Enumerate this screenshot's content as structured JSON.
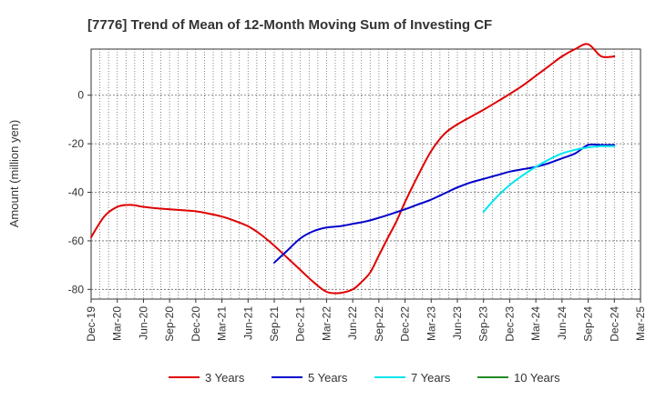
{
  "chart_data": {
    "type": "line",
    "title": "[7776]  Trend of Mean of 12-Month Moving Sum of Investing CF",
    "xlabel": "",
    "ylabel": "Amount (million yen)",
    "ylim": [
      -84,
      19
    ],
    "yticks": [
      0,
      -20,
      -40,
      -60,
      -80
    ],
    "x_tick_labels": [
      "Dec-19",
      "Mar-20",
      "Jun-20",
      "Sep-20",
      "Dec-20",
      "Mar-21",
      "Jun-21",
      "Sep-21",
      "Dec-21",
      "Mar-22",
      "Jun-22",
      "Sep-22",
      "Dec-22",
      "Mar-23",
      "Jun-23",
      "Sep-23",
      "Dec-23",
      "Mar-24",
      "Jun-24",
      "Sep-24",
      "Dec-24",
      "Mar-25"
    ],
    "grid": true,
    "legend_position": "bottom",
    "series": [
      {
        "name": "3 Years",
        "color": "#e00000",
        "x": [
          0,
          0.5,
          1,
          1.5,
          2,
          2.5,
          3,
          3.5,
          4,
          4.5,
          5,
          5.5,
          6,
          6.5,
          7,
          7.5,
          8,
          8.5,
          9,
          9.5,
          10,
          10.33,
          10.67,
          11,
          11.33,
          11.67,
          12,
          12.5,
          13,
          13.5,
          14,
          14.5,
          15,
          15.5,
          16,
          16.5,
          17,
          17.5,
          18,
          18.5,
          19,
          19.5,
          20
        ],
        "values": [
          -58.5,
          -50,
          -46,
          -45.2,
          -46,
          -46.6,
          -47,
          -47.4,
          -47.8,
          -48.8,
          -50,
          -51.8,
          -54,
          -57.5,
          -62,
          -67,
          -72,
          -77,
          -81,
          -81.5,
          -80,
          -77,
          -73,
          -66,
          -59,
          -52,
          -44,
          -33,
          -23,
          -16,
          -12,
          -9,
          -6,
          -2.8,
          0.5,
          4,
          8,
          12,
          16,
          19,
          21,
          16,
          16
        ],
        "x_trim": 20
      },
      {
        "name": "5 Years",
        "color": "#0000cc",
        "x": [
          7,
          7.5,
          8,
          8.5,
          9,
          9.5,
          10,
          10.5,
          11,
          11.5,
          12,
          12.5,
          13,
          13.5,
          14,
          14.5,
          15,
          15.5,
          16,
          16.5,
          17,
          17.5,
          18,
          18.5,
          19,
          19.5,
          20
        ],
        "values": [
          -69,
          -64,
          -59,
          -56,
          -54.5,
          -54,
          -53,
          -52,
          -50.5,
          -48.8,
          -47,
          -45,
          -43,
          -40.5,
          -38,
          -36,
          -34.5,
          -33,
          -31.5,
          -30.5,
          -29.5,
          -28,
          -26,
          -24,
          -20.5,
          -20.5,
          -20.5
        ],
        "x_trim": 20
      },
      {
        "name": "7 Years",
        "color": "#00e5ee",
        "x": [
          15,
          15.5,
          16,
          16.5,
          17,
          17.5,
          18,
          18.5,
          19,
          19.5,
          20
        ],
        "values": [
          -48,
          -42,
          -37,
          -33,
          -29.5,
          -26.5,
          -24,
          -22.5,
          -21.5,
          -21,
          -21
        ],
        "x_trim": 20
      },
      {
        "name": "10 Years",
        "color": "#228b22",
        "x": [],
        "values": []
      }
    ]
  }
}
